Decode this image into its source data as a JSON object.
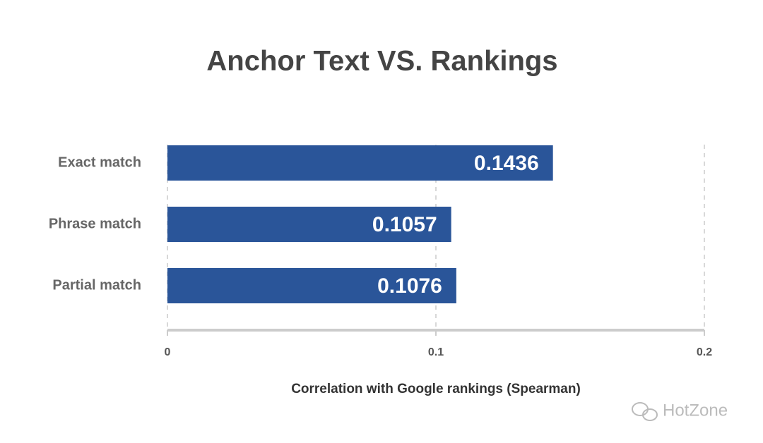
{
  "chart_data": {
    "type": "bar",
    "orientation": "horizontal",
    "title": "Anchor Text VS. Rankings",
    "categories": [
      "Exact match",
      "Phrase match",
      "Partial match"
    ],
    "values": [
      0.1436,
      0.1057,
      0.1076
    ],
    "color": "#2a5599",
    "xlabel": "Correlation with Google rankings (Spearman)",
    "xlim": [
      0,
      0.2
    ],
    "xticks": [
      0,
      0.1,
      0.2
    ],
    "grid": true
  },
  "watermark": "HotZone"
}
